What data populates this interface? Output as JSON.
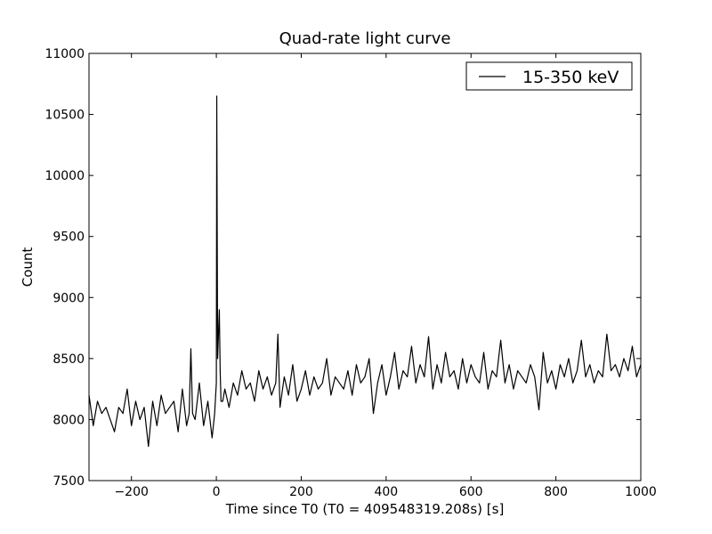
{
  "chart_data": {
    "type": "line",
    "title": "Quad-rate light curve",
    "xlabel": "Time since T0 (T0 = 409548319.208s) [s]",
    "ylabel": "Count",
    "xlim": [
      -300,
      1000
    ],
    "ylim": [
      7500,
      11000
    ],
    "xticks": [
      -200,
      0,
      200,
      400,
      600,
      800,
      1000
    ],
    "yticks": [
      7500,
      8000,
      8500,
      9000,
      9500,
      10000,
      10500,
      11000
    ],
    "grid": false,
    "legend_position": "top-right",
    "line_color": "#000000",
    "series": [
      {
        "name": "15-350 keV",
        "x": [
          -300,
          -290,
          -280,
          -270,
          -260,
          -250,
          -240,
          -230,
          -220,
          -210,
          -200,
          -190,
          -180,
          -170,
          -160,
          -150,
          -140,
          -130,
          -120,
          -110,
          -100,
          -90,
          -80,
          -70,
          -64,
          -60,
          -56,
          -50,
          -40,
          -30,
          -20,
          -10,
          -4,
          0,
          1,
          3,
          5,
          7,
          9,
          11,
          15,
          20,
          30,
          40,
          50,
          60,
          70,
          80,
          90,
          100,
          110,
          120,
          130,
          140,
          145,
          150,
          160,
          170,
          180,
          190,
          200,
          210,
          220,
          230,
          240,
          250,
          260,
          270,
          280,
          290,
          300,
          310,
          320,
          330,
          340,
          350,
          360,
          370,
          380,
          390,
          400,
          410,
          420,
          430,
          440,
          450,
          460,
          470,
          480,
          490,
          500,
          510,
          520,
          530,
          540,
          550,
          560,
          570,
          580,
          590,
          600,
          610,
          620,
          630,
          640,
          650,
          660,
          670,
          680,
          690,
          700,
          710,
          720,
          730,
          740,
          750,
          760,
          770,
          780,
          790,
          800,
          810,
          820,
          830,
          840,
          850,
          860,
          870,
          880,
          890,
          900,
          910,
          920,
          930,
          940,
          950,
          960,
          970,
          980,
          990,
          1000
        ],
        "y": [
          8200,
          7950,
          8150,
          8050,
          8100,
          8000,
          7900,
          8100,
          8050,
          8250,
          7950,
          8150,
          8000,
          8100,
          7780,
          8150,
          7950,
          8200,
          8050,
          8100,
          8150,
          7900,
          8250,
          7950,
          8050,
          8580,
          8050,
          8000,
          8300,
          7950,
          8150,
          7850,
          8050,
          8300,
          10650,
          8500,
          8700,
          8900,
          8400,
          8150,
          8150,
          8250,
          8100,
          8300,
          8200,
          8400,
          8250,
          8300,
          8150,
          8400,
          8250,
          8350,
          8200,
          8300,
          8700,
          8100,
          8350,
          8200,
          8450,
          8150,
          8250,
          8400,
          8200,
          8350,
          8250,
          8300,
          8500,
          8200,
          8350,
          8300,
          8250,
          8400,
          8200,
          8450,
          8300,
          8350,
          8500,
          8050,
          8300,
          8450,
          8200,
          8350,
          8550,
          8250,
          8400,
          8350,
          8600,
          8300,
          8450,
          8350,
          8680,
          8250,
          8450,
          8300,
          8550,
          8350,
          8400,
          8250,
          8500,
          8300,
          8450,
          8350,
          8300,
          8550,
          8250,
          8400,
          8350,
          8650,
          8300,
          8450,
          8250,
          8400,
          8350,
          8300,
          8450,
          8350,
          8080,
          8550,
          8300,
          8400,
          8250,
          8450,
          8350,
          8500,
          8300,
          8400,
          8650,
          8350,
          8450,
          8300,
          8400,
          8350,
          8700,
          8400,
          8450,
          8350,
          8500,
          8400,
          8600,
          8350,
          8450
        ]
      }
    ]
  }
}
